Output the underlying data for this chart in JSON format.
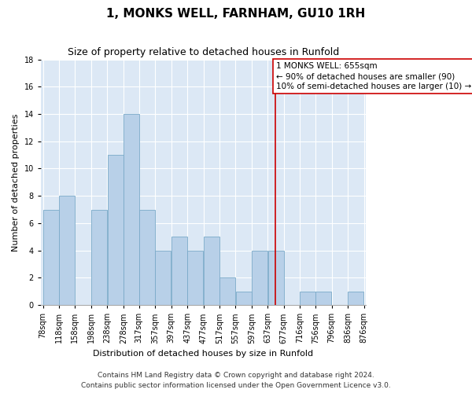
{
  "title": "1, MONKS WELL, FARNHAM, GU10 1RH",
  "subtitle": "Size of property relative to detached houses in Runfold",
  "xlabel": "Distribution of detached houses by size in Runfold",
  "ylabel": "Number of detached properties",
  "footnote1": "Contains HM Land Registry data © Crown copyright and database right 2024.",
  "footnote2": "Contains public sector information licensed under the Open Government Licence v3.0.",
  "bin_edges": [
    78,
    118,
    158,
    198,
    238,
    278,
    317,
    357,
    397,
    437,
    477,
    517,
    557,
    597,
    637,
    677,
    716,
    756,
    796,
    836,
    876
  ],
  "counts": [
    7,
    8,
    0,
    7,
    11,
    14,
    7,
    4,
    5,
    4,
    5,
    2,
    1,
    4,
    4,
    0,
    1,
    1,
    0,
    1
  ],
  "bar_color": "#b8d0e8",
  "bar_edge_color": "#7aaac8",
  "bg_color": "#dce8f5",
  "grid_color": "#ffffff",
  "vline_x": 655,
  "vline_color": "#cc0000",
  "annotation_text": "1 MONKS WELL: 655sqm\n← 90% of detached houses are smaller (90)\n10% of semi-detached houses are larger (10) →",
  "annotation_box_color": "#cc0000",
  "ylim": [
    0,
    18
  ],
  "yticks": [
    0,
    2,
    4,
    6,
    8,
    10,
    12,
    14,
    16,
    18
  ],
  "title_fontsize": 11,
  "subtitle_fontsize": 9,
  "label_fontsize": 8,
  "tick_fontsize": 7,
  "annot_fontsize": 7.5,
  "footnote_fontsize": 6.5
}
